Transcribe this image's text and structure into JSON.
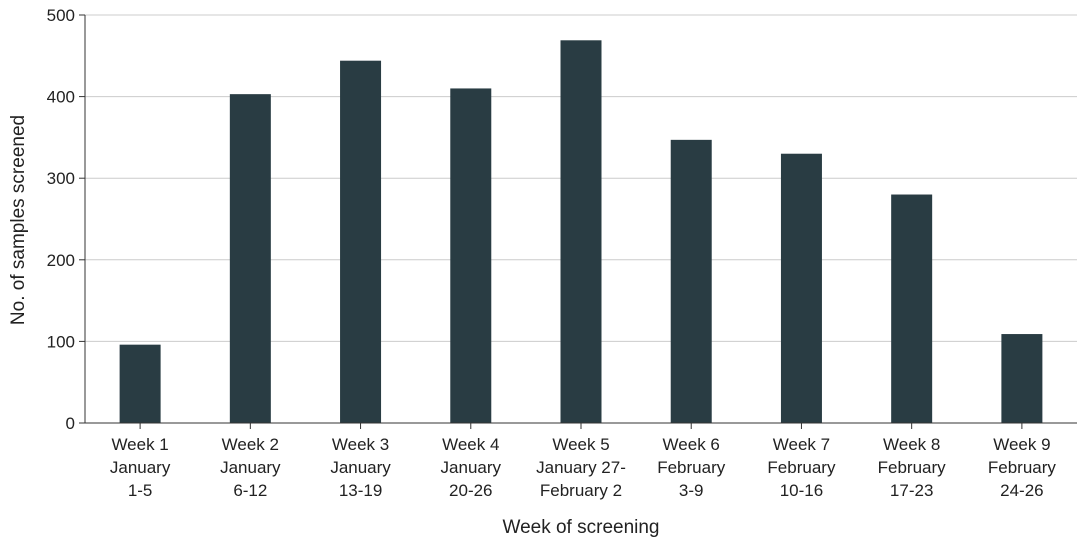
{
  "chart_data": {
    "type": "bar",
    "title": "",
    "xlabel": "Week of screening",
    "ylabel": "No. of samples screened",
    "ylim": [
      0,
      500
    ],
    "yticks": [
      0,
      100,
      200,
      300,
      400,
      500
    ],
    "grid": true,
    "legend": "none",
    "bar_color": "#293c43",
    "categories": [
      {
        "lines": [
          "Week 1",
          "January",
          "1-5"
        ]
      },
      {
        "lines": [
          "Week 2",
          "January",
          "6-12"
        ]
      },
      {
        "lines": [
          "Week 3",
          "January",
          "13-19"
        ]
      },
      {
        "lines": [
          "Week 4",
          "January",
          "20-26"
        ]
      },
      {
        "lines": [
          "Week 5",
          "January 27-",
          "February 2"
        ]
      },
      {
        "lines": [
          "Week 6",
          "February",
          "3-9"
        ]
      },
      {
        "lines": [
          "Week 7",
          "February",
          "10-16"
        ]
      },
      {
        "lines": [
          "Week 8",
          "February",
          "17-23"
        ]
      },
      {
        "lines": [
          "Week 9",
          "February",
          "24-26"
        ]
      }
    ],
    "values": [
      96,
      403,
      444,
      410,
      469,
      347,
      330,
      280,
      109
    ]
  }
}
